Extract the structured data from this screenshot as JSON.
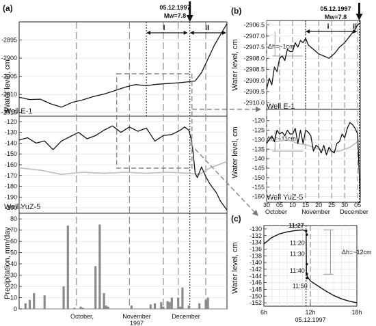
{
  "panels": {
    "a": "(a)",
    "b": "(b)",
    "c": "(c)"
  },
  "event": {
    "date": "05.12.1997",
    "magnitude": "Mw=7.8"
  },
  "periods": {
    "one": "I",
    "two": "II"
  },
  "chart_data": [
    {
      "id": "a-top",
      "type": "line",
      "series_name": "Well E-1",
      "ylabel": "Water level, cm",
      "ylim": [
        -2916,
        -2890
      ],
      "yticks": [
        -2895,
        -2900,
        -2905,
        -2910,
        -2915
      ],
      "x_days": [
        0,
        5,
        10,
        15,
        20,
        25,
        30,
        35,
        40,
        45,
        50,
        55,
        60,
        65,
        70,
        75,
        80,
        83,
        86,
        88,
        90,
        92,
        95,
        98
      ],
      "y": [
        -2910.8,
        -2911.4,
        -2911.3,
        -2912.6,
        -2913.5,
        -2912.2,
        -2911.5,
        -2910.6,
        -2909.9,
        -2909.0,
        -2908.0,
        -2907.3,
        -2907.6,
        -2907.2,
        -2907.0,
        -2906.8,
        -2906.5,
        -2906.3,
        -2904.0,
        -2901.5,
        -2899.0,
        -2896.5,
        -2893.5,
        -2890.5
      ]
    },
    {
      "id": "a-mid",
      "type": "line",
      "series_name": "Well YuZ-5",
      "ylabel": "Water level, cm",
      "ylim": [
        -205,
        -115
      ],
      "yticks": [
        -120,
        -130,
        -140,
        -150,
        -160,
        -170,
        -180,
        -190,
        -200
      ],
      "x_days": [
        0,
        4,
        8,
        12,
        16,
        20,
        24,
        28,
        32,
        36,
        40,
        44,
        48,
        52,
        56,
        60,
        64,
        68,
        72,
        76,
        78,
        80,
        81,
        82,
        83,
        84,
        86,
        88,
        90,
        93,
        95,
        98
      ],
      "y": [
        -137,
        -135,
        -140,
        -138,
        -146,
        -138,
        -134,
        -130,
        -136,
        -133,
        -128,
        -124,
        -130,
        -125,
        -129,
        -126,
        -138,
        -133,
        -132,
        -128,
        -125,
        -128,
        -135,
        -148,
        -168,
        -172,
        -162,
        -171,
        -178,
        -186,
        -194,
        -202
      ],
      "grey_series_x": [
        0,
        10,
        20,
        30,
        40,
        50,
        60,
        70,
        80,
        85,
        90,
        98
      ],
      "grey_series_y": [
        -163,
        -165,
        -169,
        -167,
        -168,
        -167,
        -168,
        -167,
        -168,
        -169,
        -163,
        -157
      ]
    },
    {
      "id": "a-bottom",
      "type": "bar",
      "ylabel": "Precipitation, mm/day",
      "ylim": [
        0,
        85
      ],
      "yticks": [
        0,
        10,
        20,
        30,
        40,
        50,
        60,
        70,
        80
      ],
      "x_days": [
        3,
        5,
        7,
        12,
        21,
        23,
        26,
        29,
        30,
        36,
        38,
        40,
        41,
        42,
        53,
        62,
        64,
        67,
        68,
        70,
        71,
        72,
        75,
        76,
        77,
        80,
        85,
        88,
        89
      ],
      "values": [
        5,
        8,
        14,
        12,
        20,
        74,
        1,
        2,
        1,
        38,
        75,
        14,
        3,
        2,
        3,
        4,
        5,
        6,
        2,
        7,
        6,
        10,
        10,
        2,
        19,
        3,
        5,
        8,
        10
      ],
      "x_tick_labels": [
        "October,",
        "November\n1997",
        "December"
      ]
    },
    {
      "id": "b-top",
      "type": "line",
      "series_name": "Well E-1",
      "ylabel": "Water level, cm",
      "ylim": [
        -2910.3,
        -2906.3
      ],
      "yticks": [
        -2906.5,
        -2907.0,
        -2907.5,
        -2908.0,
        -2908.5,
        -2909.0,
        -2909.5,
        -2910.0
      ],
      "annotation": "Δh=~1cm",
      "x_days": [
        0,
        1,
        2,
        3,
        4,
        5,
        6,
        7,
        8,
        9,
        10,
        11,
        12,
        13,
        14,
        15,
        16,
        17,
        18,
        20,
        22,
        24,
        26,
        28,
        30,
        32,
        34,
        35,
        36
      ],
      "y": [
        -2909.4,
        -2908.9,
        -2909.2,
        -2908.4,
        -2908.6,
        -2908.0,
        -2907.9,
        -2908.1,
        -2907.6,
        -2907.7,
        -2907.7,
        -2907.3,
        -2907.5,
        -2907.2,
        -2907.3,
        -2907.1,
        -2907.4,
        -2907.5,
        -2907.6,
        -2907.8,
        -2907.9,
        -2908.0,
        -2907.8,
        -2907.5,
        -2907.3,
        -2907.0,
        -2906.7,
        -2906.5,
        -2906.4
      ]
    },
    {
      "id": "b-bottom",
      "type": "line",
      "series_name": "Well YuZ-5",
      "ylabel": "Water level, cm",
      "ylim": [
        -163,
        -114
      ],
      "yticks": [
        -120,
        -125,
        -130,
        -135,
        -140,
        -145,
        -150,
        -155,
        -160
      ],
      "annotation": "Δh=~11cm",
      "x_days": [
        0,
        1,
        2,
        3,
        4,
        5,
        6,
        7,
        8,
        9,
        10,
        11,
        12,
        13,
        14,
        15,
        16,
        17,
        18,
        19,
        20,
        21,
        22,
        23,
        24,
        25,
        26,
        27,
        28,
        29,
        30,
        31,
        32,
        33,
        34,
        35,
        35.5,
        36
      ],
      "y": [
        -132,
        -130,
        -128,
        -131,
        -125,
        -127,
        -126,
        -128,
        -125,
        -127,
        -127,
        -124,
        -132,
        -125,
        -132,
        -125,
        -126,
        -128,
        -136,
        -133,
        -134,
        -137,
        -133,
        -138,
        -134,
        -136,
        -137,
        -132,
        -131,
        -127,
        -129,
        -124,
        -121,
        -122,
        -124,
        -127,
        -145,
        -160
      ],
      "grey_series_x": [
        0,
        4,
        8,
        12,
        16,
        20,
        24,
        28,
        32,
        35,
        36
      ],
      "grey_series_y": [
        -130,
        -131,
        -130,
        -132,
        -133,
        -135,
        -136,
        -136,
        -134,
        -131,
        -129
      ],
      "x_tick_labels": [
        "30",
        "05",
        "10",
        "15",
        "20",
        "25",
        "30",
        "05"
      ],
      "x_month_labels": [
        "October",
        "November",
        "December"
      ]
    },
    {
      "id": "c",
      "type": "line",
      "ylabel": "Water level, cm",
      "ylim": [
        -153,
        -129
      ],
      "yticks": [
        -130,
        -132,
        -134,
        -136,
        -138,
        -140,
        -142,
        -144,
        -146,
        -148,
        -150,
        -152
      ],
      "x_tick_labels": [
        "6h",
        "12h",
        "18h"
      ],
      "xlabel": "05.12.1997",
      "annotation": "Δh=~12cm",
      "time_labels": [
        "11:27",
        "11:20",
        "11:30",
        "11:40",
        "11:50"
      ],
      "x_hours": [
        6,
        7,
        8,
        9,
        10,
        11,
        11.45,
        11.5,
        11.7,
        12,
        13,
        14,
        15,
        16,
        17,
        18
      ],
      "y": [
        -134.5,
        -132.6,
        -131.5,
        -130.9,
        -130.5,
        -130.3,
        -130.6,
        -143.5,
        -144.5,
        -145.5,
        -147.0,
        -148.5,
        -149.8,
        -150.8,
        -151.5,
        -152.0
      ]
    }
  ]
}
